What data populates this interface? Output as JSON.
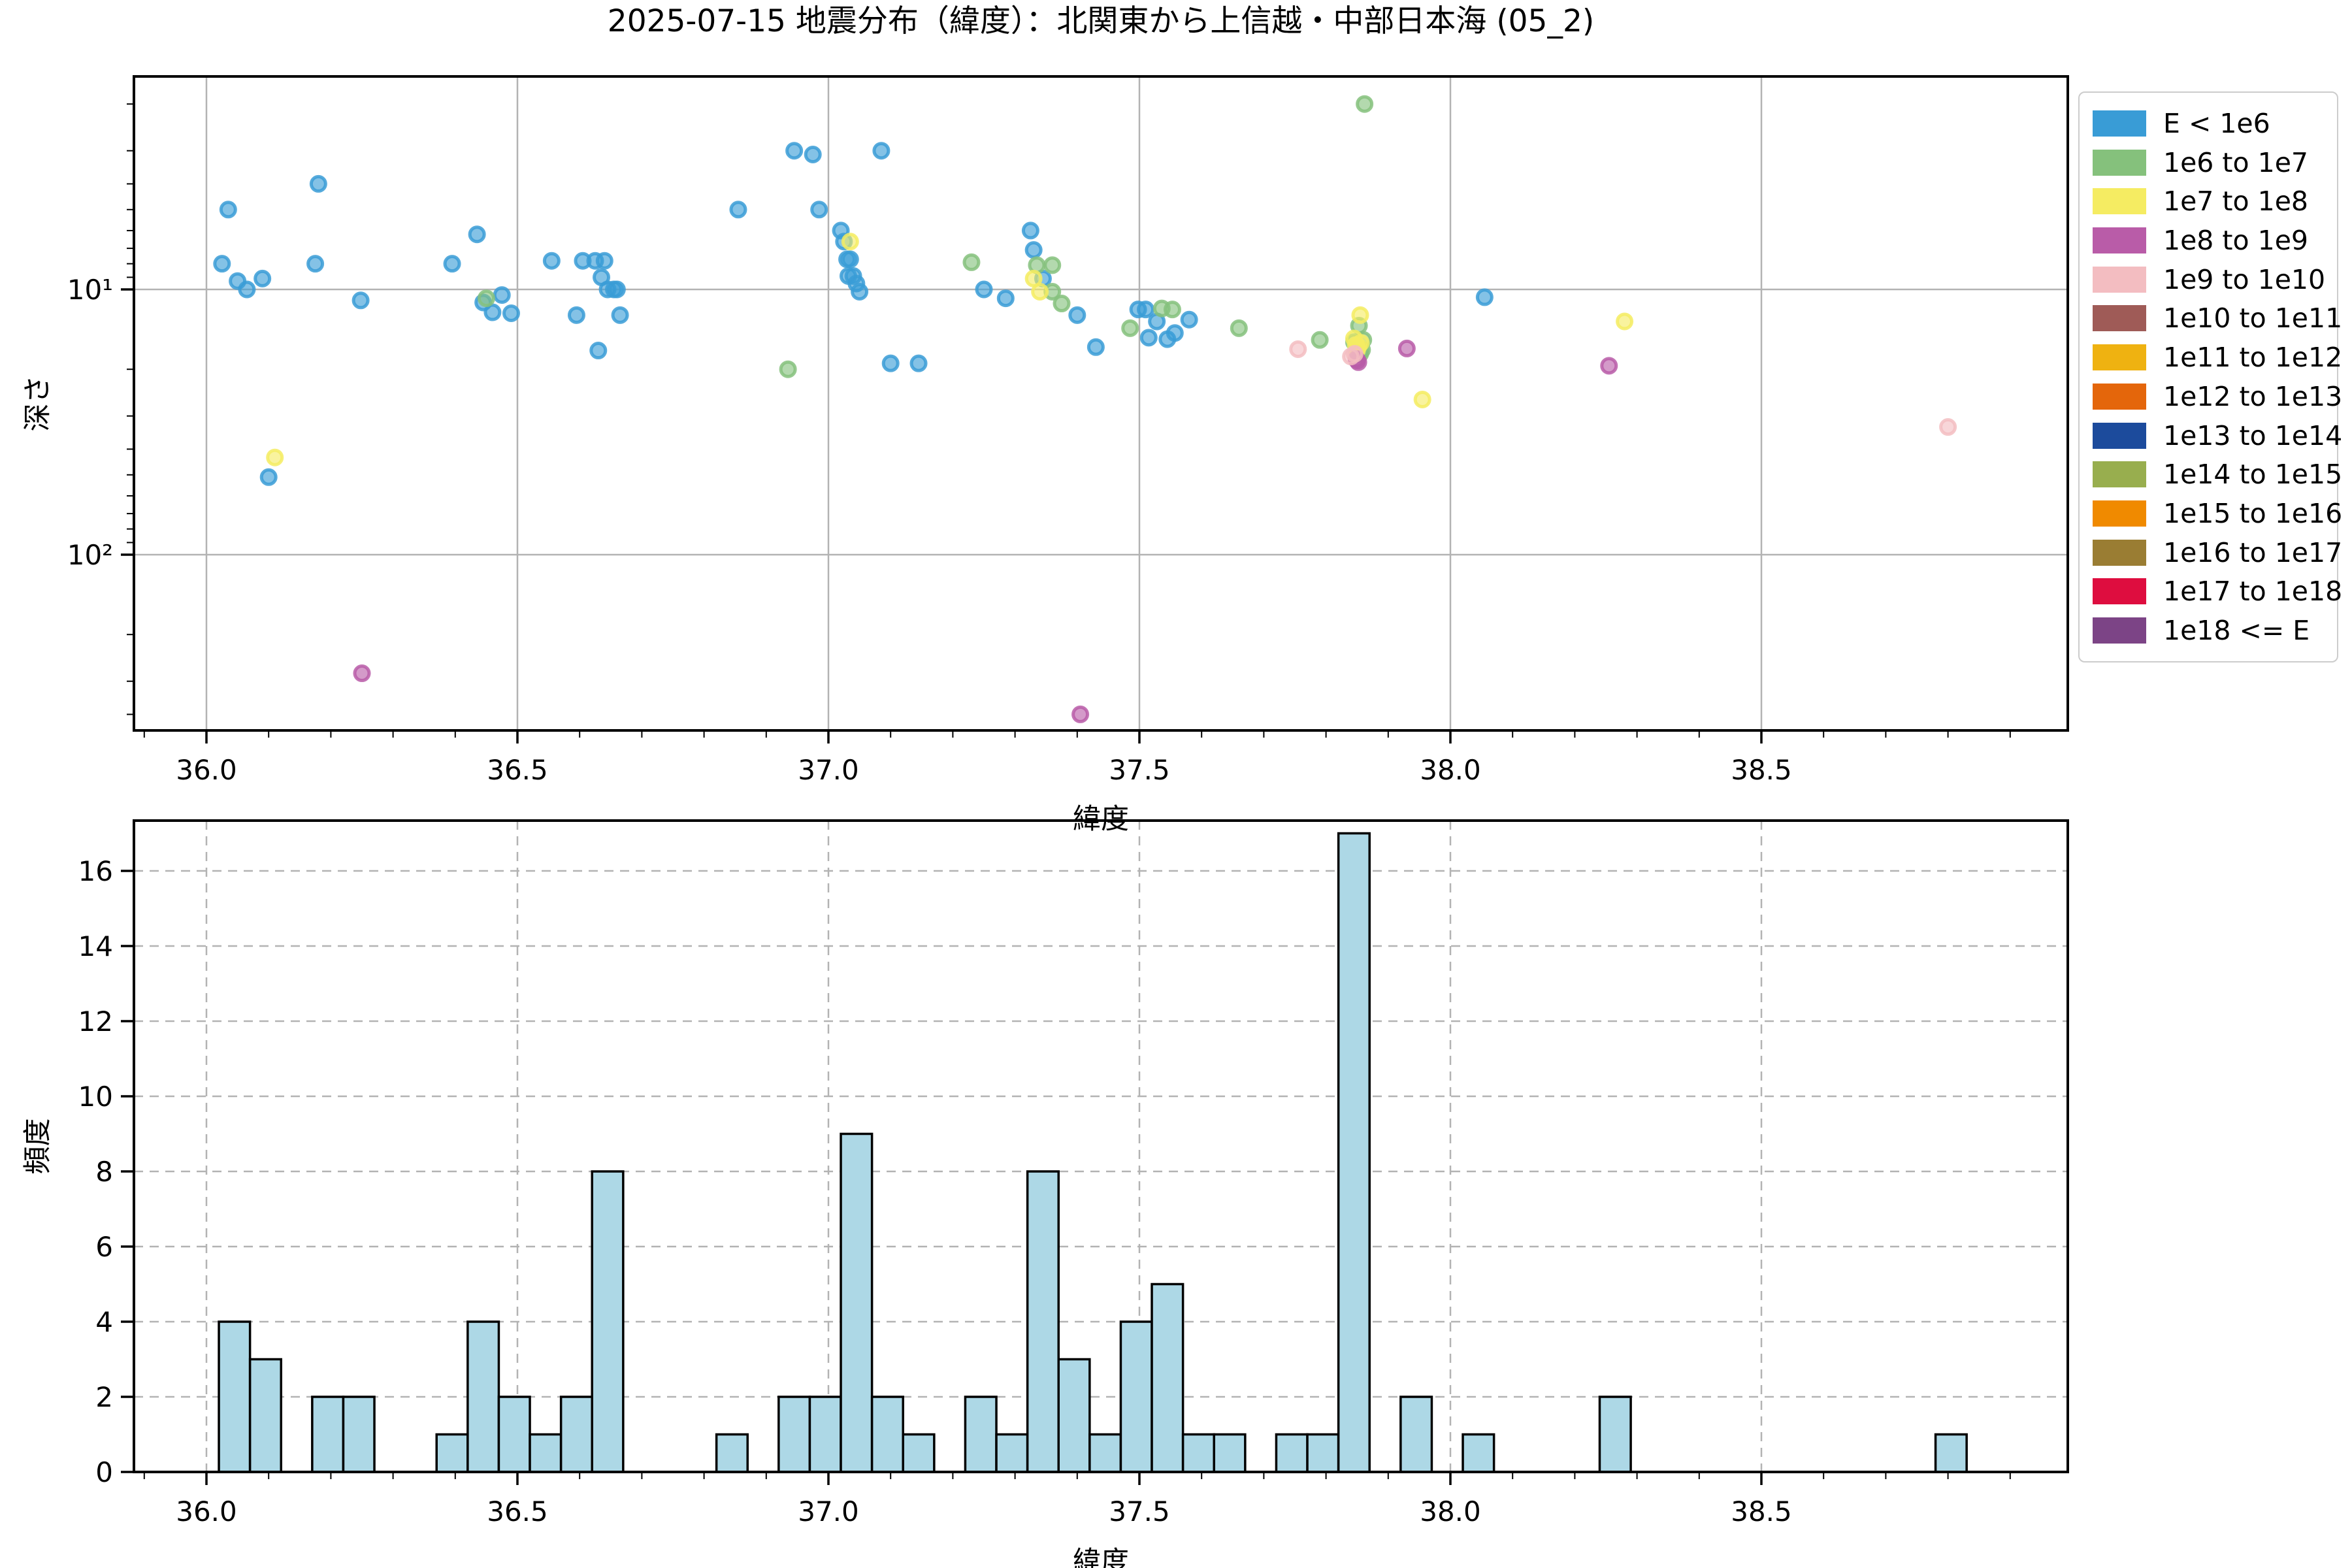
{
  "title": "2025-07-15 地震分布（緯度）：北関東から上信越・中部日本海 (05_2)",
  "colors": {
    "background": "#ffffff",
    "grid_solid": "#b3b3b3",
    "grid_dashed": "#b3b3b3",
    "spine": "#000000",
    "hist_bar_fill": "#ADD8E6",
    "hist_bar_edge": "#000000"
  },
  "legend": {
    "items": [
      {
        "label": "E < 1e6",
        "color": "#399CD6"
      },
      {
        "label": "1e6 to 1e7",
        "color": "#85C17C"
      },
      {
        "label": "1e7 to 1e8",
        "color": "#F5EC62"
      },
      {
        "label": "1e8 to 1e9",
        "color": "#B95CA8"
      },
      {
        "label": "1e9 to 1e10",
        "color": "#F3BDC1"
      },
      {
        "label": "1e10 to 1e11",
        "color": "#9F5B57"
      },
      {
        "label": "1e11 to 1e12",
        "color": "#EFB211"
      },
      {
        "label": "1e12 to 1e13",
        "color": "#E4660B"
      },
      {
        "label": "1e13 to 1e14",
        "color": "#1C4B9C"
      },
      {
        "label": "1e14 to 1e15",
        "color": "#98AE4E"
      },
      {
        "label": "1e15 to 1e16",
        "color": "#F08A00"
      },
      {
        "label": "1e16 to 1e17",
        "color": "#9A7D33"
      },
      {
        "label": "1e17 to 1e18",
        "color": "#DE0D3F"
      },
      {
        "label": "1e18 <= E",
        "color": "#7C4486"
      }
    ]
  },
  "chart_data": [
    {
      "type": "scatter",
      "title": "2025-07-15 地震分布（緯度）：北関東から上信越・中部日本海 (05_2)",
      "xlabel": "緯度",
      "ylabel": "深さ",
      "xlim": [
        35.883,
        38.993
      ],
      "ylim_depth_inverted_log": [
        1.57,
        460
      ],
      "x_tick_values": [
        36.0,
        36.5,
        37.0,
        37.5,
        38.0,
        38.5
      ],
      "x_tick_labels": [
        "36.0",
        "36.5",
        "37.0",
        "37.5",
        "38.0",
        "38.5"
      ],
      "y_tick_values": [
        10,
        100
      ],
      "y_tick_labels": [
        "10¹",
        "10²"
      ],
      "grid": "solid",
      "legend_position": "outside-right",
      "series": [
        {
          "name": "E < 1e6",
          "color": "#399CD6",
          "points": [
            [
              36.025,
              8.0
            ],
            [
              36.035,
              5.0
            ],
            [
              36.05,
              9.3
            ],
            [
              36.065,
              10.0
            ],
            [
              36.09,
              9.1
            ],
            [
              36.1,
              51
            ],
            [
              36.175,
              8.0
            ],
            [
              36.18,
              4.0
            ],
            [
              36.248,
              11.0
            ],
            [
              36.395,
              8.0
            ],
            [
              36.435,
              6.2
            ],
            [
              36.445,
              11.2
            ],
            [
              36.46,
              12.2
            ],
            [
              36.475,
              10.5
            ],
            [
              36.49,
              12.3
            ],
            [
              36.555,
              7.8
            ],
            [
              36.595,
              12.5
            ],
            [
              36.605,
              7.8
            ],
            [
              36.625,
              7.8
            ],
            [
              36.63,
              17.0
            ],
            [
              36.635,
              9.0
            ],
            [
              36.64,
              7.8
            ],
            [
              36.645,
              10.0
            ],
            [
              36.655,
              10.0
            ],
            [
              36.66,
              10.0
            ],
            [
              36.665,
              12.5
            ],
            [
              36.855,
              5.0
            ],
            [
              36.945,
              3.0
            ],
            [
              36.975,
              3.1
            ],
            [
              36.985,
              5.0
            ],
            [
              37.02,
              6.0
            ],
            [
              37.025,
              6.6
            ],
            [
              37.03,
              7.7
            ],
            [
              37.035,
              7.7
            ],
            [
              37.032,
              8.9
            ],
            [
              37.04,
              8.9
            ],
            [
              37.045,
              9.5
            ],
            [
              37.05,
              10.2
            ],
            [
              37.085,
              3.0
            ],
            [
              37.1,
              19.0
            ],
            [
              37.145,
              19.0
            ],
            [
              37.25,
              10.0
            ],
            [
              37.285,
              10.8
            ],
            [
              37.325,
              6.0
            ],
            [
              37.33,
              7.1
            ],
            [
              37.345,
              9.1
            ],
            [
              37.4,
              12.5
            ],
            [
              37.43,
              16.5
            ],
            [
              37.498,
              11.9
            ],
            [
              37.51,
              11.9
            ],
            [
              37.515,
              15.2
            ],
            [
              37.528,
              13.2
            ],
            [
              37.545,
              15.4
            ],
            [
              37.557,
              14.6
            ],
            [
              37.58,
              13.0
            ],
            [
              38.055,
              10.7
            ]
          ]
        },
        {
          "name": "1e6 to 1e7",
          "color": "#85C17C",
          "points": [
            [
              36.45,
              10.8
            ],
            [
              36.935,
              20
            ],
            [
              37.23,
              7.9
            ],
            [
              37.335,
              8.1
            ],
            [
              37.36,
              8.1
            ],
            [
              37.36,
              10.2
            ],
            [
              37.375,
              11.3
            ],
            [
              37.485,
              14.0
            ],
            [
              37.536,
              11.8
            ],
            [
              37.553,
              11.9
            ],
            [
              37.66,
              14.0
            ],
            [
              37.79,
              15.5
            ],
            [
              37.845,
              15.8
            ],
            [
              37.853,
              13.7
            ],
            [
              37.855,
              17.5
            ],
            [
              37.858,
              16.9
            ],
            [
              37.86,
              15.5
            ],
            [
              37.862,
              2.0
            ]
          ]
        },
        {
          "name": "1e7 to 1e8",
          "color": "#F5EC62",
          "points": [
            [
              36.11,
              43
            ],
            [
              37.035,
              6.6
            ],
            [
              37.33,
              9.1
            ],
            [
              37.34,
              10.2
            ],
            [
              37.845,
              15.3
            ],
            [
              37.848,
              16.2
            ],
            [
              37.85,
              16.9
            ],
            [
              37.852,
              16.4
            ],
            [
              37.855,
              12.5
            ],
            [
              37.856,
              15.9
            ],
            [
              37.955,
              26
            ],
            [
              38.28,
              13.2
            ]
          ]
        },
        {
          "name": "1e8 to 1e9",
          "color": "#B95CA8",
          "points": [
            [
              36.25,
              280
            ],
            [
              37.405,
              400
            ],
            [
              37.849,
              18.3
            ],
            [
              37.85,
              18.5
            ],
            [
              37.852,
              18.8
            ],
            [
              37.93,
              16.7
            ],
            [
              38.255,
              19.4
            ]
          ]
        },
        {
          "name": "1e9 to 1e10",
          "color": "#F3BDC1",
          "points": [
            [
              37.755,
              16.8
            ],
            [
              37.84,
              17.9
            ],
            [
              37.846,
              17.5
            ],
            [
              38.8,
              33
            ]
          ]
        }
      ]
    },
    {
      "type": "bar",
      "xlabel": "緯度",
      "ylabel": "頻度",
      "xlim": [
        35.883,
        38.993
      ],
      "ylim": [
        0,
        17.35
      ],
      "x_tick_values": [
        36.0,
        36.5,
        37.0,
        37.5,
        38.0,
        38.5
      ],
      "x_tick_labels": [
        "36.0",
        "36.5",
        "37.0",
        "37.5",
        "38.0",
        "38.5"
      ],
      "y_tick_values": [
        0,
        2,
        4,
        6,
        8,
        10,
        12,
        14,
        16
      ],
      "y_tick_labels": [
        "0",
        "2",
        "4",
        "6",
        "8",
        "10",
        "12",
        "14",
        "16"
      ],
      "grid": "dashed",
      "bin_width": 0.05,
      "bars": [
        {
          "lat_left": 36.02,
          "count": 4
        },
        {
          "lat_left": 36.07,
          "count": 3
        },
        {
          "lat_left": 36.17,
          "count": 2
        },
        {
          "lat_left": 36.22,
          "count": 2
        },
        {
          "lat_left": 36.37,
          "count": 1
        },
        {
          "lat_left": 36.42,
          "count": 4
        },
        {
          "lat_left": 36.47,
          "count": 2
        },
        {
          "lat_left": 36.52,
          "count": 1
        },
        {
          "lat_left": 36.57,
          "count": 2
        },
        {
          "lat_left": 36.62,
          "count": 8
        },
        {
          "lat_left": 36.82,
          "count": 1
        },
        {
          "lat_left": 36.92,
          "count": 2
        },
        {
          "lat_left": 36.97,
          "count": 2
        },
        {
          "lat_left": 37.02,
          "count": 9
        },
        {
          "lat_left": 37.07,
          "count": 2
        },
        {
          "lat_left": 37.12,
          "count": 1
        },
        {
          "lat_left": 37.22,
          "count": 2
        },
        {
          "lat_left": 37.27,
          "count": 1
        },
        {
          "lat_left": 37.32,
          "count": 8
        },
        {
          "lat_left": 37.37,
          "count": 3
        },
        {
          "lat_left": 37.42,
          "count": 1
        },
        {
          "lat_left": 37.47,
          "count": 4
        },
        {
          "lat_left": 37.52,
          "count": 5
        },
        {
          "lat_left": 37.57,
          "count": 1
        },
        {
          "lat_left": 37.62,
          "count": 1
        },
        {
          "lat_left": 37.72,
          "count": 1
        },
        {
          "lat_left": 37.77,
          "count": 1
        },
        {
          "lat_left": 37.82,
          "count": 17
        },
        {
          "lat_left": 37.92,
          "count": 2
        },
        {
          "lat_left": 38.02,
          "count": 1
        },
        {
          "lat_left": 38.24,
          "count": 2
        },
        {
          "lat_left": 38.78,
          "count": 1
        }
      ]
    }
  ]
}
